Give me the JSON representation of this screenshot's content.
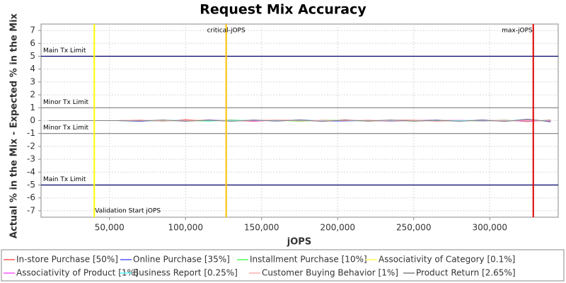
{
  "chart_data": {
    "type": "line",
    "title": "Request Mix Accuracy",
    "x_label": "jOPS",
    "y_label": "Actual % in the Mix - Expected % in the Mix",
    "x": [
      10000,
      25000,
      40000,
      55000,
      70000,
      85000,
      100000,
      115000,
      130000,
      145000,
      160000,
      175000,
      190000,
      205000,
      220000,
      235000,
      250000,
      265000,
      280000,
      295000,
      310000,
      325000,
      340000
    ],
    "series": [
      {
        "name": "In-store Purchase [50%]",
        "color": "#ff5555",
        "values": [
          0,
          0,
          0,
          0,
          0.05,
          -0.05,
          0.08,
          -0.03,
          0.04,
          -0.06,
          0.05,
          0.02,
          -0.04,
          0.06,
          -0.05,
          0.03,
          0.05,
          -0.04,
          0.02,
          -0.03,
          0.04,
          -0.08,
          0.06
        ]
      },
      {
        "name": "Online Purchase [35%]",
        "color": "#5555ff",
        "values": [
          0,
          0,
          0,
          0,
          -0.06,
          0.04,
          -0.05,
          0.07,
          -0.03,
          0.05,
          -0.04,
          0.06,
          -0.02,
          -0.05,
          0.04,
          -0.06,
          0.03,
          0.05,
          -0.04,
          0.06,
          -0.05,
          0.12,
          -0.1
        ]
      },
      {
        "name": "Installment Purchase [10%]",
        "color": "#55ff55",
        "values": [
          0,
          0,
          0,
          0,
          0.03,
          -0.04,
          0.02,
          -0.05,
          0.06,
          -0.02,
          0.04,
          -0.06,
          0.05,
          0.02,
          -0.03,
          0.04,
          -0.05,
          0.03,
          0.02,
          -0.04,
          0.03,
          -0.05,
          0.04
        ]
      },
      {
        "name": "Associativity of Category [0.1%]",
        "color": "#ffff55",
        "values": [
          0,
          0,
          0,
          0,
          0.01,
          0,
          -0.01,
          0,
          0.01,
          0,
          0,
          -0.01,
          0,
          0.01,
          0,
          0,
          -0.01,
          0,
          0.01,
          0,
          0,
          -0.01,
          0
        ]
      },
      {
        "name": "Associativity of Product [1%]",
        "color": "#ff55ff",
        "values": [
          0,
          0,
          0,
          0,
          0.02,
          -0.02,
          0.03,
          -0.01,
          0.02,
          -0.03,
          0.01,
          0.02,
          -0.02,
          0.03,
          -0.01,
          0.02,
          -0.02,
          0.01,
          0.03,
          -0.02,
          0.01,
          -0.03,
          0.02
        ]
      },
      {
        "name": "Business Report [0.25%]",
        "color": "#55ffff",
        "values": [
          0,
          0,
          0,
          0,
          -0.02,
          0.01,
          0.02,
          -0.02,
          0.01,
          0.02,
          -0.01,
          0.01,
          0.02,
          -0.02,
          0.01,
          -0.01,
          0.02,
          -0.01,
          0.01,
          0.02,
          -0.02,
          0.08,
          -0.04
        ]
      },
      {
        "name": "Customer Buying Behavior [1%]",
        "color": "#ffafaf",
        "values": [
          0,
          0,
          0,
          0,
          0.04,
          -0.03,
          0.02,
          0.05,
          -0.04,
          0.03,
          0.06,
          -0.03,
          0.04,
          -0.02,
          0.05,
          -0.04,
          0.03,
          0.02,
          -0.05,
          0.04,
          -0.03,
          0.05,
          -0.04
        ]
      },
      {
        "name": "Product Return [2.65%]",
        "color": "#808080",
        "values": [
          0,
          0,
          0,
          0,
          -0.03,
          0.05,
          -0.04,
          0.03,
          -0.05,
          0.04,
          -0.03,
          0.05,
          -0.06,
          0.04,
          -0.03,
          0.05,
          -0.04,
          0.03,
          -0.05,
          0.04,
          -0.06,
          0.1,
          -0.07
        ]
      }
    ],
    "xlim": [
      5000,
      345000
    ],
    "xticks": [
      {
        "value": 50000,
        "label": "50,000"
      },
      {
        "value": 100000,
        "label": "100,000"
      },
      {
        "value": 150000,
        "label": "150,000"
      },
      {
        "value": 200000,
        "label": "200,000"
      },
      {
        "value": 250000,
        "label": "250,000"
      },
      {
        "value": 300000,
        "label": "300,000"
      }
    ],
    "ylim": [
      -7.5,
      7.5
    ],
    "yticks": [
      -7,
      -6,
      -5,
      -4,
      -3,
      -2,
      -1,
      0,
      1,
      2,
      3,
      4,
      5,
      6,
      7
    ],
    "grid": true,
    "limits": [
      {
        "label": "Main Tx Limit",
        "value": 5,
        "color": "#000066"
      },
      {
        "label": "Minor Tx Limit",
        "value": 1,
        "color": "#808080"
      },
      {
        "label": "Minor Tx Limit",
        "value": -1,
        "color": "#808080"
      },
      {
        "label": "Main Tx Limit",
        "value": -5,
        "color": "#000066"
      }
    ],
    "markers": [
      {
        "label": "Validation Start jOPS",
        "value": 40000,
        "color": "#ffff00"
      },
      {
        "label": "critical-jOPS",
        "value": 126700,
        "color": "#ffc000"
      },
      {
        "label": "max-jOPS",
        "value": 328600,
        "color": "#dd0000"
      }
    ],
    "legend": "bottom"
  }
}
